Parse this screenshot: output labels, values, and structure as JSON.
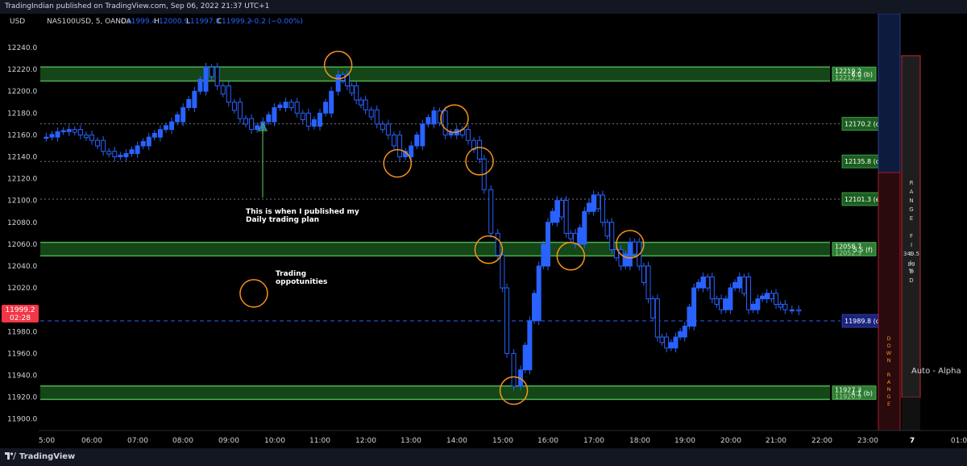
{
  "header": {
    "publish_line": "TradingIndian published on TradingView.com, Sep 06, 2022 21:37 UTC+1"
  },
  "legend": {
    "currency": "USD",
    "symbol": "NAS100USD, 5, OANDA",
    "o_label": "O",
    "o_value": "11999.4",
    "h_label": "H",
    "h_value": "12000.9",
    "l_label": "L",
    "l_value": "11997.8",
    "c_label": "C",
    "c_value": "11999.2",
    "change": "−0.2 (−0.00%)"
  },
  "footer": {
    "brand": "TradingView"
  },
  "colors": {
    "up": "#2962ff",
    "zone": "#1b5e20",
    "zone_border": "#4caf50",
    "circle": "#f7931a",
    "arrow": "#4caf50",
    "price_label": "#f23645"
  },
  "chart_data": {
    "type": "candlestick",
    "title": "",
    "ylabel": "USD",
    "ylim": [
      11890,
      12250
    ],
    "y_ticks": [
      "12240.0",
      "12220.0",
      "12200.0",
      "12180.0",
      "12160.0",
      "12140.0",
      "12120.0",
      "12100.0",
      "12080.0",
      "12060.0",
      "12040.0",
      "12020.0",
      "12000.0",
      "11980.0",
      "11960.0",
      "11940.0",
      "11920.0",
      "11900.0"
    ],
    "x_ticks": [
      "5:00",
      "06:00",
      "07:00",
      "08:00",
      "09:00",
      "10:00",
      "11:00",
      "12:00",
      "13:00",
      "14:00",
      "15:00",
      "16:00",
      "17:00",
      "18:00",
      "19:00",
      "20:00",
      "21:00",
      "22:00",
      "23:00",
      "7",
      "01:0"
    ],
    "last_price": {
      "value": "11999.2",
      "countdown": "02:28"
    },
    "zones": [
      {
        "top": 12219.2,
        "bottom": 12212.3,
        "label_top": "12219.2",
        "label_bottom": "12212.3",
        "label_hidden": "6.0 (b)"
      },
      {
        "top": 12058.7,
        "bottom": 12052.3,
        "label_top": "12058.7",
        "label_bottom": "12052.3",
        "label_hidden": "5.5 (f)"
      },
      {
        "top": 11927.3,
        "bottom": 11920.9,
        "label_top": "11927.3",
        "label_bottom": "11920.9",
        "label_hidden": "4.1 (b)"
      }
    ],
    "levels": [
      {
        "value": 12170.2,
        "label": "12170.2 (c)",
        "color": "#1b5e20"
      },
      {
        "value": 12135.8,
        "label": "12135.8 (d)",
        "color": "#1b5e20"
      },
      {
        "value": 12101.3,
        "label": "12101.3 (e)",
        "color": "#1b5e20"
      },
      {
        "value": 11989.8,
        "label": "11989.8 (d)",
        "color": "#1a237e"
      }
    ],
    "circles": [
      {
        "time": 11.4,
        "price": 12224
      },
      {
        "time": 12.7,
        "price": 12134
      },
      {
        "time": 13.95,
        "price": 12175
      },
      {
        "time": 14.5,
        "price": 12136
      },
      {
        "time": 14.7,
        "price": 12055
      },
      {
        "time": 16.5,
        "price": 12049
      },
      {
        "time": 17.8,
        "price": 12060
      },
      {
        "time": 15.25,
        "price": 11926
      },
      {
        "time": 9.55,
        "price": 12015
      }
    ],
    "annotations": [
      {
        "text_lines": [
          "This is when I published my",
          "Daily trading plan"
        ]
      },
      {
        "text_lines": [
          "Trading",
          "oppotunities"
        ]
      }
    ],
    "range_panel": {
      "vertical_text": "RANGE FILLED",
      "value": "349.5",
      "percent": "89",
      "pct_sign": "%",
      "down_text": "DOWN RANGE",
      "alpha_label": "Auto - Alpha"
    },
    "series": [
      {
        "name": "",
        "points": [
          [
            5.0,
            12158
          ],
          [
            5.25,
            12163
          ],
          [
            5.5,
            12165
          ],
          [
            5.75,
            12160
          ],
          [
            6.0,
            12155
          ],
          [
            6.25,
            12145
          ],
          [
            6.5,
            12140
          ],
          [
            6.75,
            12143
          ],
          [
            7.0,
            12150
          ],
          [
            7.25,
            12158
          ],
          [
            7.5,
            12165
          ],
          [
            7.75,
            12172
          ],
          [
            8.0,
            12185
          ],
          [
            8.25,
            12200
          ],
          [
            8.5,
            12222
          ],
          [
            8.75,
            12205
          ],
          [
            9.0,
            12190
          ],
          [
            9.25,
            12175
          ],
          [
            9.5,
            12165
          ],
          [
            9.75,
            12172
          ],
          [
            10.0,
            12185
          ],
          [
            10.25,
            12190
          ],
          [
            10.5,
            12180
          ],
          [
            10.75,
            12168
          ],
          [
            11.0,
            12180
          ],
          [
            11.25,
            12200
          ],
          [
            11.4,
            12215
          ],
          [
            11.6,
            12205
          ],
          [
            11.8,
            12192
          ],
          [
            12.0,
            12183
          ],
          [
            12.25,
            12170
          ],
          [
            12.5,
            12160
          ],
          [
            12.75,
            12140
          ],
          [
            13.0,
            12150
          ],
          [
            13.25,
            12170
          ],
          [
            13.5,
            12182
          ],
          [
            13.75,
            12160
          ],
          [
            14.0,
            12165
          ],
          [
            14.25,
            12155
          ],
          [
            14.5,
            12138
          ],
          [
            14.6,
            12110
          ],
          [
            14.75,
            12070
          ],
          [
            14.9,
            12050
          ],
          [
            15.0,
            12020
          ],
          [
            15.1,
            11960
          ],
          [
            15.25,
            11930
          ],
          [
            15.4,
            11945
          ],
          [
            15.6,
            11990
          ],
          [
            15.8,
            12040
          ],
          [
            16.0,
            12080
          ],
          [
            16.2,
            12100
          ],
          [
            16.4,
            12070
          ],
          [
            16.6,
            12060
          ],
          [
            16.8,
            12090
          ],
          [
            17.0,
            12105
          ],
          [
            17.2,
            12080
          ],
          [
            17.4,
            12055
          ],
          [
            17.6,
            12040
          ],
          [
            17.8,
            12062
          ],
          [
            18.0,
            12040
          ],
          [
            18.2,
            12010
          ],
          [
            18.4,
            11975
          ],
          [
            18.6,
            11965
          ],
          [
            18.8,
            11975
          ],
          [
            19.0,
            11985
          ],
          [
            19.2,
            12020
          ],
          [
            19.4,
            12030
          ],
          [
            19.6,
            12010
          ],
          [
            19.8,
            12000
          ],
          [
            20.0,
            12020
          ],
          [
            20.2,
            12030
          ],
          [
            20.4,
            12000
          ],
          [
            20.6,
            12010
          ],
          [
            20.8,
            12015
          ],
          [
            21.0,
            12005
          ],
          [
            21.2,
            12000
          ],
          [
            21.35,
            12000
          ],
          [
            21.5,
            11999
          ]
        ]
      }
    ]
  }
}
